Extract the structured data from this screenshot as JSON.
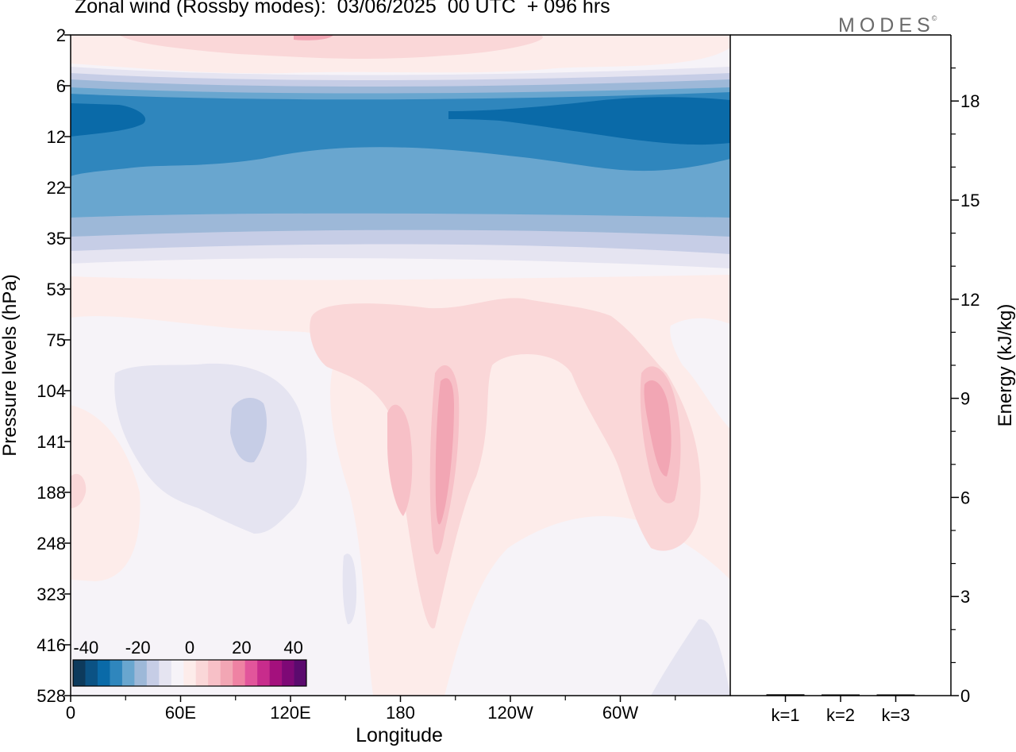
{
  "title": "Zonal wind (Rossby modes):  03/06/2025  00 UTC  + 096 hrs",
  "logo": "MODES",
  "logo_mark": "©",
  "colors": {
    "neg_strong": "#0a6aa8",
    "neg_mid": "#2f86bd",
    "neg_light": "#69a6cf",
    "neg_pale": "#9db8d8",
    "neg_faint": "#c6cde6",
    "neg_trace": "#e5e4f1",
    "zero": "#f6f3f8",
    "pos_trace": "#fdecea",
    "pos_light": "#fad7d8",
    "pos_mid": "#f7c0c7",
    "pos_strong": "#f2a6b4",
    "pos_peak": "#ef82a3"
  },
  "chart_data": [
    {
      "type": "heatmap",
      "title": "Zonal wind (Rossby modes):  03/06/2025  00 UTC  + 096 hrs",
      "xlabel": "Longitude",
      "ylabel": "Pressure levels (hPa)",
      "x_ticks": [
        "0",
        "60E",
        "120E",
        "180",
        "120W",
        "60W"
      ],
      "x_tick_degrees": [
        0,
        60,
        120,
        180,
        240,
        300
      ],
      "xlim": [
        0,
        360
      ],
      "y_ticks": [
        "2",
        "6",
        "12",
        "22",
        "35",
        "53",
        "75",
        "104",
        "141",
        "188",
        "248",
        "323",
        "416",
        "528"
      ],
      "colorbar": {
        "ticks": [
          "-40",
          "-20",
          "0",
          "20",
          "40"
        ],
        "levels": [
          -45,
          -40,
          -35,
          -30,
          -25,
          -20,
          -15,
          -10,
          -5,
          0,
          5,
          10,
          15,
          20,
          25,
          30,
          35,
          40,
          45
        ],
        "colors": [
          "#0d3a5c",
          "#0b5284",
          "#0a6aa8",
          "#2f86bd",
          "#69a6cf",
          "#9db8d8",
          "#c6cde6",
          "#e5e4f1",
          "#f6f3f8",
          "#fdecea",
          "#fad7d8",
          "#f7c0c7",
          "#f2a6b4",
          "#ef82a3",
          "#e2559b",
          "#c82c8c",
          "#a4107d",
          "#7e0876",
          "#5b0a6e"
        ]
      },
      "features": [
        {
          "level_hPa": "2-4",
          "zonal_wind_ms": 10,
          "note": "weak westerly band along top"
        },
        {
          "level_hPa": "8-14",
          "zonal_wind_ms": -35,
          "note": "strongest easterlies near 0-40E and 240-360"
        },
        {
          "level_hPa": "14-30",
          "zonal_wind_ms": -25
        },
        {
          "level_hPa": "30-40",
          "zonal_wind_ms": -10
        },
        {
          "level_hPa": "60-100",
          "zonal_wind_ms": 8,
          "note": "westerly maximum 140E-330"
        },
        {
          "level_hPa": "110-280",
          "zonal_wind_ms": -7,
          "note": "easterly patch 40E-130E"
        },
        {
          "level_hPa": "110-280",
          "zonal_wind_ms": 17,
          "note": "westerly peaks near 195 and 315"
        }
      ]
    },
    {
      "type": "bar",
      "ylabel": "Energy (kJ/kg)",
      "categories": [
        "k=1",
        "k=2",
        "k=3"
      ],
      "values": [
        0.04,
        0.02,
        0.01
      ],
      "ylim": [
        0,
        20
      ],
      "y_ticks": [
        0,
        3,
        6,
        9,
        12,
        15,
        18
      ]
    }
  ]
}
